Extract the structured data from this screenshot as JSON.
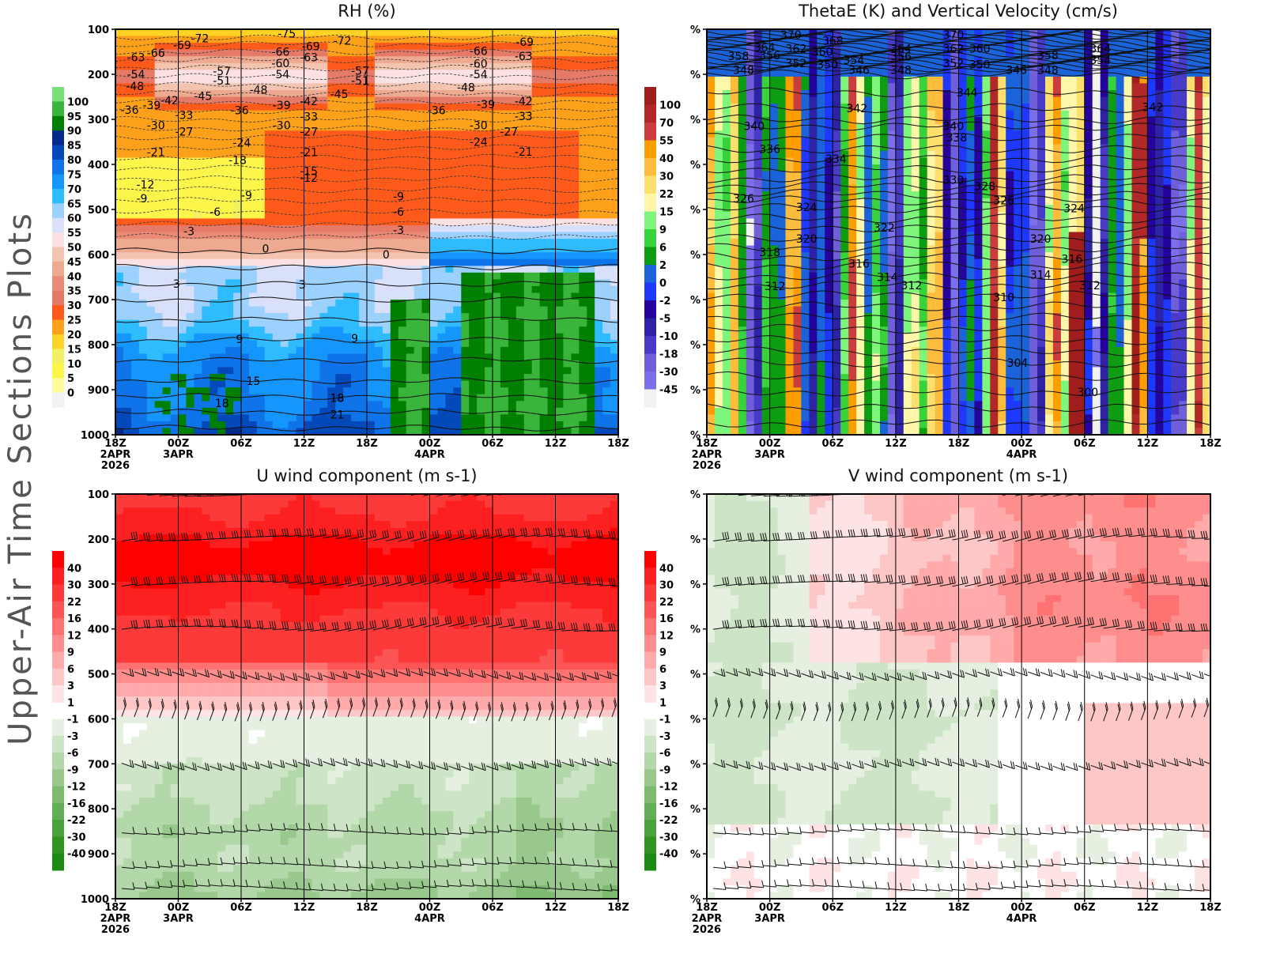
{
  "page_title": "Upper-Air Time Sections Plots",
  "colors": {
    "rh": [
      "#f2f2f2",
      "#fefc9a",
      "#fcf64b",
      "#f1ef64",
      "#fed325",
      "#fda11b",
      "#fd5a1b",
      "#e57a69",
      "#ea8b78",
      "#edaa90",
      "#f3c4b0",
      "#fce1e3",
      "#d8e0fa",
      "#9cd0fd",
      "#2fbcfe",
      "#1596fc",
      "#0f74e9",
      "#0449b9",
      "#022a8a",
      "#007f00",
      "#3ab43b",
      "#78e076"
    ],
    "omega": [
      "#f2f2f2",
      "#7c70ea",
      "#6f5fd8",
      "#483bc8",
      "#2e23a4",
      "#24049c",
      "#1e38fe",
      "#1a63d8",
      "#0d9c12",
      "#36d33a",
      "#7ef57b",
      "#fef6a8",
      "#fddf6d",
      "#febc3d",
      "#fd9e00",
      "#cb3d3d",
      "#b22828",
      "#a01d1d"
    ],
    "wind": [
      "#1a8a10",
      "#30941f",
      "#4aa23c",
      "#63ae55",
      "#7eba70",
      "#98c88c",
      "#b2d7a9",
      "#cde4c6",
      "#e5f0e1",
      "#ffffff",
      "#fde3e3",
      "#fec7c7",
      "#fea9aa",
      "#fe8e8e",
      "#fe7272",
      "#fd5555",
      "#fd3a3a",
      "#fd2020",
      "#fe0000"
    ]
  },
  "chart_data": [
    {
      "type": "heatmap",
      "title": "RH (%)",
      "xlabel": "",
      "ylabel": "",
      "x_ticks": [
        {
          "time": "18Z",
          "date": "2APR",
          "year": "2026"
        },
        {
          "time": "00Z",
          "date": "3APR",
          "year": ""
        },
        {
          "time": "06Z",
          "date": "",
          "year": ""
        },
        {
          "time": "12Z",
          "date": "",
          "year": ""
        },
        {
          "time": "18Z",
          "date": "",
          "year": ""
        },
        {
          "time": "00Z",
          "date": "4APR",
          "year": ""
        },
        {
          "time": "06Z",
          "date": "",
          "year": ""
        },
        {
          "time": "12Z",
          "date": "",
          "year": ""
        },
        {
          "time": "18Z",
          "date": "",
          "year": ""
        }
      ],
      "x_hours": [
        0,
        48
      ],
      "y_ticks": [
        "100",
        "200",
        "300",
        "400",
        "500",
        "600",
        "700",
        "800",
        "900",
        "1000"
      ],
      "ylim": [
        100,
        1000
      ],
      "colorbar_labels": [
        "0",
        "5",
        "10",
        "15",
        "20",
        "25",
        "30",
        "35",
        "40",
        "45",
        "50",
        "55",
        "60",
        "65",
        "70",
        "75",
        "80",
        "85",
        "90",
        "95",
        "100"
      ],
      "contour_field": "Temperature",
      "contour_labels": [
        {
          "v": "-75",
          "h": 15.5,
          "p": 110
        },
        {
          "v": "-72",
          "h": 7.2,
          "p": 120
        },
        {
          "v": "-72",
          "h": 20.8,
          "p": 125
        },
        {
          "v": "-69",
          "h": 5.5,
          "p": 135
        },
        {
          "v": "-69",
          "h": 17.8,
          "p": 138
        },
        {
          "v": "-69",
          "h": 38.2,
          "p": 128
        },
        {
          "v": "-66",
          "h": 3.0,
          "p": 153
        },
        {
          "v": "-66",
          "h": 14.9,
          "p": 150
        },
        {
          "v": "-66",
          "h": 33.8,
          "p": 148
        },
        {
          "v": "-63",
          "h": 1.1,
          "p": 162
        },
        {
          "v": "-63",
          "h": 17.6,
          "p": 162
        },
        {
          "v": "-63",
          "h": 38.1,
          "p": 160
        },
        {
          "v": "-60",
          "h": 14.9,
          "p": 175
        },
        {
          "v": "-60",
          "h": 33.8,
          "p": 176
        },
        {
          "v": "-57",
          "h": 9.3,
          "p": 193
        },
        {
          "v": "-57",
          "h": 22.5,
          "p": 192
        },
        {
          "v": "-54",
          "h": 1.1,
          "p": 200
        },
        {
          "v": "-54",
          "h": 14.9,
          "p": 200
        },
        {
          "v": "-54",
          "h": 33.8,
          "p": 200
        },
        {
          "v": "-51",
          "h": 9.3,
          "p": 214
        },
        {
          "v": "-51",
          "h": 22.5,
          "p": 214
        },
        {
          "v": "-48",
          "h": 1.0,
          "p": 226
        },
        {
          "v": "-48",
          "h": 12.8,
          "p": 234
        },
        {
          "v": "-48",
          "h": 32.6,
          "p": 229
        },
        {
          "v": "-45",
          "h": 7.5,
          "p": 248
        },
        {
          "v": "-45",
          "h": 20.5,
          "p": 244
        },
        {
          "v": "-42",
          "h": 4.3,
          "p": 258
        },
        {
          "v": "-42",
          "h": 17.6,
          "p": 260
        },
        {
          "v": "-42",
          "h": 38.1,
          "p": 260
        },
        {
          "v": "-39",
          "h": 2.6,
          "p": 268
        },
        {
          "v": "-39",
          "h": 15.0,
          "p": 268
        },
        {
          "v": "-39",
          "h": 34.5,
          "p": 267
        },
        {
          "v": "-36",
          "h": 0.5,
          "p": 279
        },
        {
          "v": "-36",
          "h": 11.0,
          "p": 280
        },
        {
          "v": "-36",
          "h": 29.8,
          "p": 280
        },
        {
          "v": "-33",
          "h": 5.7,
          "p": 290
        },
        {
          "v": "-33",
          "h": 17.6,
          "p": 294
        },
        {
          "v": "-33",
          "h": 38.1,
          "p": 293
        },
        {
          "v": "-30",
          "h": 3.0,
          "p": 313
        },
        {
          "v": "-30",
          "h": 15.0,
          "p": 313
        },
        {
          "v": "-30",
          "h": 33.8,
          "p": 313
        },
        {
          "v": "-27",
          "h": 5.7,
          "p": 327
        },
        {
          "v": "-27",
          "h": 17.6,
          "p": 327
        },
        {
          "v": "-27",
          "h": 36.7,
          "p": 327
        },
        {
          "v": "-24",
          "h": 11.2,
          "p": 352
        },
        {
          "v": "-24",
          "h": 33.8,
          "p": 350
        },
        {
          "v": "-21",
          "h": 3.0,
          "p": 373
        },
        {
          "v": "-21",
          "h": 17.6,
          "p": 373
        },
        {
          "v": "-21",
          "h": 38.1,
          "p": 372
        },
        {
          "v": "-18",
          "h": 10.8,
          "p": 390
        },
        {
          "v": "-15",
          "h": 17.6,
          "p": 415
        },
        {
          "v": "-12",
          "h": 2.0,
          "p": 445
        },
        {
          "v": "-12",
          "h": 17.6,
          "p": 430
        },
        {
          "v": "-9",
          "h": 2.0,
          "p": 475
        },
        {
          "v": "-9",
          "h": 12.0,
          "p": 468
        },
        {
          "v": "-9",
          "h": 26.5,
          "p": 471
        },
        {
          "v": "-6",
          "h": 9.0,
          "p": 505
        },
        {
          "v": "-6",
          "h": 26.5,
          "p": 505
        },
        {
          "v": "-3",
          "h": 6.5,
          "p": 548
        },
        {
          "v": "-3",
          "h": 26.5,
          "p": 546
        },
        {
          "v": "0",
          "h": 14.0,
          "p": 587
        },
        {
          "v": "0",
          "h": 25.5,
          "p": 600
        },
        {
          "v": "3",
          "h": 5.5,
          "p": 665
        },
        {
          "v": "3",
          "h": 17.5,
          "p": 667
        },
        {
          "v": "9",
          "h": 11.5,
          "p": 788
        },
        {
          "v": "9",
          "h": 22.5,
          "p": 786
        },
        {
          "v": "15",
          "h": 12.5,
          "p": 881
        },
        {
          "v": "18",
          "h": 9.5,
          "p": 930
        },
        {
          "v": "18",
          "h": 20.5,
          "p": 918
        },
        {
          "v": "21",
          "h": 20.5,
          "p": 955
        }
      ]
    },
    {
      "type": "heatmap",
      "title": "ThetaE (K) and Vertical Velocity (cm/s)",
      "xlabel": "",
      "ylabel": "",
      "x_ticks": [
        {
          "time": "18Z",
          "date": "2APR",
          "year": "2026"
        },
        {
          "time": "00Z",
          "date": "3APR",
          "year": ""
        },
        {
          "time": "06Z",
          "date": "",
          "year": ""
        },
        {
          "time": "12Z",
          "date": "",
          "year": ""
        },
        {
          "time": "18Z",
          "date": "",
          "year": ""
        },
        {
          "time": "00Z",
          "date": "4APR",
          "year": ""
        },
        {
          "time": "06Z",
          "date": "",
          "year": ""
        },
        {
          "time": "12Z",
          "date": "",
          "year": ""
        },
        {
          "time": "18Z",
          "date": "",
          "year": ""
        }
      ],
      "x_hours": [
        0,
        48
      ],
      "y_ticks": [
        "%",
        "%",
        "%",
        "%",
        "%",
        "%",
        "%",
        "%",
        "%",
        "%"
      ],
      "ylim": [
        100,
        1000
      ],
      "colorbar_labels": [
        "-45",
        "-30",
        "-18",
        "-10",
        "-5",
        "-2",
        "0",
        "2",
        "6",
        "9",
        "15",
        "22",
        "30",
        "40",
        "55",
        "70",
        "100"
      ],
      "contour_field": "ThetaE",
      "contour_labels": [
        {
          "v": "370",
          "h": 7.0,
          "p": 112
        },
        {
          "v": "370",
          "h": 22.5,
          "p": 112
        },
        {
          "v": "368",
          "h": 11.0,
          "p": 125
        },
        {
          "v": "364",
          "h": 4.5,
          "p": 140
        },
        {
          "v": "364",
          "h": 17.5,
          "p": 143
        },
        {
          "v": "364",
          "h": 36.5,
          "p": 143
        },
        {
          "v": "362",
          "h": 7.5,
          "p": 143
        },
        {
          "v": "362",
          "h": 22.5,
          "p": 143
        },
        {
          "v": "360",
          "h": 10.0,
          "p": 150
        },
        {
          "v": "360",
          "h": 25.0,
          "p": 143
        },
        {
          "v": "358",
          "h": 2.0,
          "p": 160
        },
        {
          "v": "358",
          "h": 31.5,
          "p": 158
        },
        {
          "v": "356",
          "h": 5.0,
          "p": 158
        },
        {
          "v": "356",
          "h": 17.5,
          "p": 160
        },
        {
          "v": "354",
          "h": 13.0,
          "p": 168
        },
        {
          "v": "354",
          "h": 36.5,
          "p": 168
        },
        {
          "v": "352",
          "h": 7.5,
          "p": 175
        },
        {
          "v": "352",
          "h": 22.5,
          "p": 175
        },
        {
          "v": "350",
          "h": 10.5,
          "p": 178
        },
        {
          "v": "350",
          "h": 25.0,
          "p": 178
        },
        {
          "v": "348",
          "h": 2.5,
          "p": 190
        },
        {
          "v": "348",
          "h": 17.5,
          "p": 190
        },
        {
          "v": "348",
          "h": 31.5,
          "p": 190
        },
        {
          "v": "346",
          "h": 13.5,
          "p": 190
        },
        {
          "v": "346",
          "h": 28.5,
          "p": 190
        },
        {
          "v": "344",
          "h": 23.8,
          "p": 240
        },
        {
          "v": "342",
          "h": 13.3,
          "p": 275
        },
        {
          "v": "342",
          "h": 41.5,
          "p": 273
        },
        {
          "v": "340",
          "h": 3.5,
          "p": 315
        },
        {
          "v": "340",
          "h": 22.5,
          "p": 315
        },
        {
          "v": "338",
          "h": 22.8,
          "p": 340
        },
        {
          "v": "336",
          "h": 5.0,
          "p": 366
        },
        {
          "v": "334",
          "h": 11.3,
          "p": 388
        },
        {
          "v": "330",
          "h": 22.5,
          "p": 434
        },
        {
          "v": "328",
          "h": 25.5,
          "p": 448
        },
        {
          "v": "326",
          "h": 2.5,
          "p": 475
        },
        {
          "v": "326",
          "h": 27.3,
          "p": 480
        },
        {
          "v": "324",
          "h": 8.5,
          "p": 495
        },
        {
          "v": "324",
          "h": 34.0,
          "p": 497
        },
        {
          "v": "322",
          "h": 15.9,
          "p": 540
        },
        {
          "v": "320",
          "h": 8.5,
          "p": 565
        },
        {
          "v": "320",
          "h": 30.8,
          "p": 565
        },
        {
          "v": "318",
          "h": 5.0,
          "p": 595
        },
        {
          "v": "316",
          "h": 13.5,
          "p": 620
        },
        {
          "v": "316",
          "h": 33.8,
          "p": 610
        },
        {
          "v": "314",
          "h": 16.2,
          "p": 650
        },
        {
          "v": "314",
          "h": 30.8,
          "p": 645
        },
        {
          "v": "312",
          "h": 5.5,
          "p": 670
        },
        {
          "v": "312",
          "h": 18.5,
          "p": 668
        },
        {
          "v": "312",
          "h": 35.5,
          "p": 668
        },
        {
          "v": "310",
          "h": 27.3,
          "p": 695
        },
        {
          "v": "304",
          "h": 28.6,
          "p": 840
        },
        {
          "v": "300",
          "h": 35.3,
          "p": 905
        }
      ]
    },
    {
      "type": "heatmap",
      "title": "U wind component (m s-1)",
      "xlabel": "",
      "ylabel": "",
      "x_ticks": [
        {
          "time": "18Z",
          "date": "2APR",
          "year": "2026"
        },
        {
          "time": "00Z",
          "date": "3APR",
          "year": ""
        },
        {
          "time": "06Z",
          "date": "",
          "year": ""
        },
        {
          "time": "12Z",
          "date": "",
          "year": ""
        },
        {
          "time": "18Z",
          "date": "",
          "year": ""
        },
        {
          "time": "00Z",
          "date": "4APR",
          "year": ""
        },
        {
          "time": "06Z",
          "date": "",
          "year": ""
        },
        {
          "time": "12Z",
          "date": "",
          "year": ""
        },
        {
          "time": "18Z",
          "date": "",
          "year": ""
        }
      ],
      "x_hours": [
        0,
        48
      ],
      "y_ticks": [
        "100",
        "200",
        "300",
        "400",
        "500",
        "600",
        "700",
        "800",
        "900",
        "1000"
      ],
      "ylim": [
        100,
        1000
      ],
      "colorbar_labels": [
        "-40",
        "-30",
        "-22",
        "-16",
        "-12",
        "-9",
        "-6",
        "-3",
        "-1",
        "1",
        "3",
        "6",
        "9",
        "12",
        "16",
        "22",
        "30",
        "40"
      ],
      "barb_levels_hpa": [
        100,
        200,
        300,
        400,
        500,
        600,
        700,
        850,
        925,
        975
      ]
    },
    {
      "type": "heatmap",
      "title": "V wind component (m s-1)",
      "xlabel": "",
      "ylabel": "",
      "x_ticks": [
        {
          "time": "18Z",
          "date": "2APR",
          "year": "2026"
        },
        {
          "time": "00Z",
          "date": "3APR",
          "year": ""
        },
        {
          "time": "06Z",
          "date": "",
          "year": ""
        },
        {
          "time": "12Z",
          "date": "",
          "year": ""
        },
        {
          "time": "18Z",
          "date": "",
          "year": ""
        },
        {
          "time": "00Z",
          "date": "4APR",
          "year": ""
        },
        {
          "time": "06Z",
          "date": "",
          "year": ""
        },
        {
          "time": "12Z",
          "date": "",
          "year": ""
        },
        {
          "time": "18Z",
          "date": "",
          "year": ""
        }
      ],
      "x_hours": [
        0,
        48
      ],
      "y_ticks": [
        "%",
        "%",
        "%",
        "%",
        "%",
        "%",
        "%",
        "%",
        "%",
        "%"
      ],
      "ylim": [
        100,
        1000
      ],
      "colorbar_labels": [
        "-40",
        "-30",
        "-22",
        "-16",
        "-12",
        "-9",
        "-6",
        "-3",
        "-1",
        "1",
        "3",
        "6",
        "9",
        "12",
        "16",
        "22",
        "30",
        "40"
      ],
      "barb_levels_hpa": [
        100,
        200,
        300,
        400,
        500,
        600,
        700,
        850,
        925,
        975
      ]
    }
  ]
}
